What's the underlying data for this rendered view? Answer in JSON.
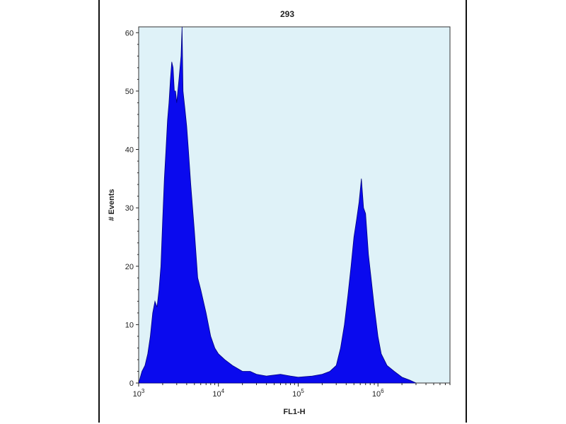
{
  "chart_data": {
    "type": "histogram",
    "title": "293",
    "xlabel": "FL1-H",
    "ylabel": "# Events",
    "x_scale": "log",
    "x_range": [
      1000,
      8000000
    ],
    "ylim": [
      0,
      61
    ],
    "x_ticks": [
      {
        "value": 1000,
        "base": "10",
        "exp": "3"
      },
      {
        "value": 10000,
        "base": "10",
        "exp": "4"
      },
      {
        "value": 100000,
        "base": "10",
        "exp": "5"
      },
      {
        "value": 1000000,
        "base": "10",
        "exp": "6"
      }
    ],
    "y_ticks": [
      0,
      10,
      20,
      30,
      40,
      50,
      60
    ],
    "grid": false,
    "colors": {
      "plot_background": "#dff2f8",
      "fill": "#0a0aee",
      "edge": "#000080",
      "axis": "#222222"
    },
    "series": [
      {
        "values_description": "FL1-H intensity (log scale) vs event count",
        "points": [
          [
            1000,
            0
          ],
          [
            1100,
            2
          ],
          [
            1200,
            3
          ],
          [
            1300,
            5
          ],
          [
            1400,
            8
          ],
          [
            1500,
            12
          ],
          [
            1600,
            14
          ],
          [
            1700,
            13
          ],
          [
            1800,
            16
          ],
          [
            1900,
            20
          ],
          [
            2000,
            28
          ],
          [
            2100,
            35
          ],
          [
            2200,
            40
          ],
          [
            2300,
            45
          ],
          [
            2400,
            48
          ],
          [
            2500,
            52
          ],
          [
            2600,
            55
          ],
          [
            2700,
            54
          ],
          [
            2800,
            50
          ],
          [
            2900,
            50
          ],
          [
            3000,
            48
          ],
          [
            3200,
            52
          ],
          [
            3400,
            56
          ],
          [
            3500,
            61
          ],
          [
            3600,
            50
          ],
          [
            3800,
            47
          ],
          [
            4000,
            44
          ],
          [
            4200,
            40
          ],
          [
            4500,
            34
          ],
          [
            5000,
            26
          ],
          [
            5500,
            18
          ],
          [
            6000,
            16
          ],
          [
            7000,
            12
          ],
          [
            8000,
            8
          ],
          [
            9000,
            6
          ],
          [
            10000,
            5
          ],
          [
            12000,
            4
          ],
          [
            15000,
            3
          ],
          [
            20000,
            2
          ],
          [
            25000,
            2
          ],
          [
            30000,
            1.5
          ],
          [
            40000,
            1.2
          ],
          [
            60000,
            1.5
          ],
          [
            80000,
            1.2
          ],
          [
            100000,
            1
          ],
          [
            150000,
            1.2
          ],
          [
            200000,
            1.5
          ],
          [
            250000,
            2
          ],
          [
            300000,
            3
          ],
          [
            340000,
            6
          ],
          [
            380000,
            10
          ],
          [
            420000,
            15
          ],
          [
            460000,
            20
          ],
          [
            500000,
            25
          ],
          [
            540000,
            28
          ],
          [
            580000,
            31
          ],
          [
            620000,
            35
          ],
          [
            660000,
            30
          ],
          [
            700000,
            29
          ],
          [
            760000,
            22
          ],
          [
            820000,
            18
          ],
          [
            900000,
            13
          ],
          [
            1000000,
            8
          ],
          [
            1100000,
            5
          ],
          [
            1300000,
            3
          ],
          [
            1600000,
            2
          ],
          [
            2000000,
            1
          ],
          [
            2500000,
            0.5
          ],
          [
            3000000,
            0
          ]
        ]
      }
    ]
  }
}
